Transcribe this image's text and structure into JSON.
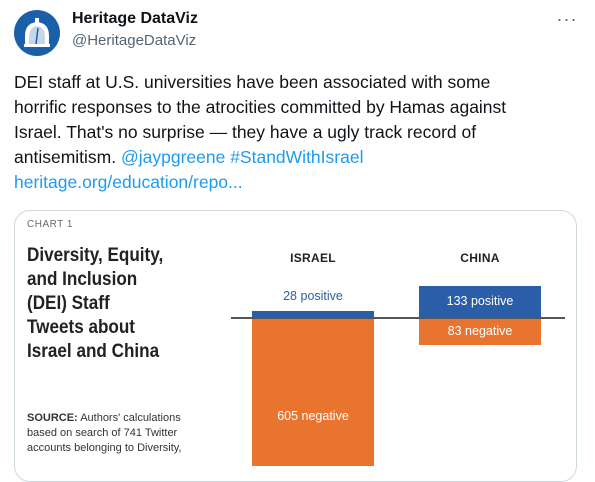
{
  "tweet": {
    "display_name": "Heritage DataViz",
    "handle": "@HeritageDataViz",
    "text_lines": [
      "DEI staff at U.S. universities have been associated with some",
      "horrific responses to the atrocities committed by Hamas against",
      "Israel. That's no surprise — they have a ugly track record of",
      "antisemitism. "
    ],
    "mention": "@jaypgreene",
    "hashtag": "#StandWithIsrael",
    "link": "heritage.org/education/repo...",
    "more_label": "···"
  },
  "colors": {
    "positive": "#2a5ea8",
    "negative": "#e8742f",
    "link": "#1d9bf0"
  },
  "chart_data": {
    "type": "bar",
    "label": "CHART 1",
    "title_lines": [
      "Diversity, Equity,",
      "and Inclusion",
      "(DEI) Staff",
      "Tweets about",
      "Israel and China"
    ],
    "source_lines": [
      "Authors' calculations",
      "based on search of 741 Twitter",
      "accounts belonging to Diversity,"
    ],
    "source_label": "SOURCE:",
    "categories": [
      "ISRAEL",
      "CHINA"
    ],
    "series": [
      {
        "name": "positive",
        "values": [
          28,
          133
        ]
      },
      {
        "name": "negative",
        "values": [
          605,
          83
        ]
      }
    ],
    "value_labels": {
      "positive": [
        "28 positive",
        "133 positive"
      ],
      "negative": [
        "605 negative",
        "83 negative"
      ]
    }
  }
}
